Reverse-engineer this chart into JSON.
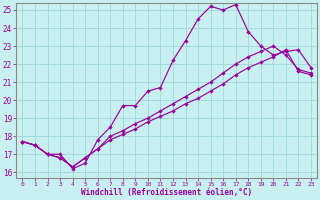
{
  "title": "",
  "xlabel": "Windchill (Refroidissement éolien,°C)",
  "bg_color": "#c8f0f0",
  "grid_color": "#a0d8d8",
  "line_color": "#990099",
  "spine_color": "#888888",
  "xlim_min": -0.5,
  "xlim_max": 23.5,
  "ylim_min": 15.7,
  "ylim_max": 25.4,
  "xticks": [
    0,
    1,
    2,
    3,
    4,
    5,
    6,
    7,
    8,
    9,
    10,
    11,
    12,
    13,
    14,
    15,
    16,
    17,
    18,
    19,
    20,
    21,
    22,
    23
  ],
  "yticks": [
    16,
    17,
    18,
    19,
    20,
    21,
    22,
    23,
    24,
    25
  ],
  "line1_x": [
    0,
    1,
    2,
    3,
    4,
    5,
    6,
    7,
    8,
    9,
    10,
    11,
    12,
    13,
    14,
    15,
    16,
    17,
    18,
    19,
    20,
    21,
    22,
    23
  ],
  "line1_y": [
    17.7,
    17.5,
    17.0,
    17.0,
    16.2,
    16.5,
    17.8,
    18.5,
    19.7,
    19.7,
    20.5,
    20.7,
    22.2,
    23.3,
    24.5,
    25.2,
    25.0,
    25.3,
    23.8,
    23.0,
    22.5,
    22.7,
    22.8,
    21.8
  ],
  "line2_x": [
    0,
    1,
    2,
    3,
    4,
    5,
    6,
    7,
    8,
    9,
    10,
    11,
    12,
    13,
    14,
    15,
    16,
    17,
    18,
    19,
    20,
    21,
    22,
    23
  ],
  "line2_y": [
    17.7,
    17.5,
    17.0,
    16.8,
    16.3,
    16.8,
    17.3,
    18.0,
    18.3,
    18.7,
    19.0,
    19.4,
    19.8,
    20.2,
    20.6,
    21.0,
    21.5,
    22.0,
    22.4,
    22.7,
    23.0,
    22.5,
    21.7,
    21.5
  ],
  "line3_x": [
    0,
    1,
    2,
    3,
    4,
    5,
    6,
    7,
    8,
    9,
    10,
    11,
    12,
    13,
    14,
    15,
    16,
    17,
    18,
    19,
    20,
    21,
    22,
    23
  ],
  "line3_y": [
    17.7,
    17.5,
    17.0,
    16.8,
    16.3,
    16.8,
    17.3,
    17.8,
    18.1,
    18.4,
    18.8,
    19.1,
    19.4,
    19.8,
    20.1,
    20.5,
    20.9,
    21.4,
    21.8,
    22.1,
    22.4,
    22.8,
    21.6,
    21.4
  ]
}
